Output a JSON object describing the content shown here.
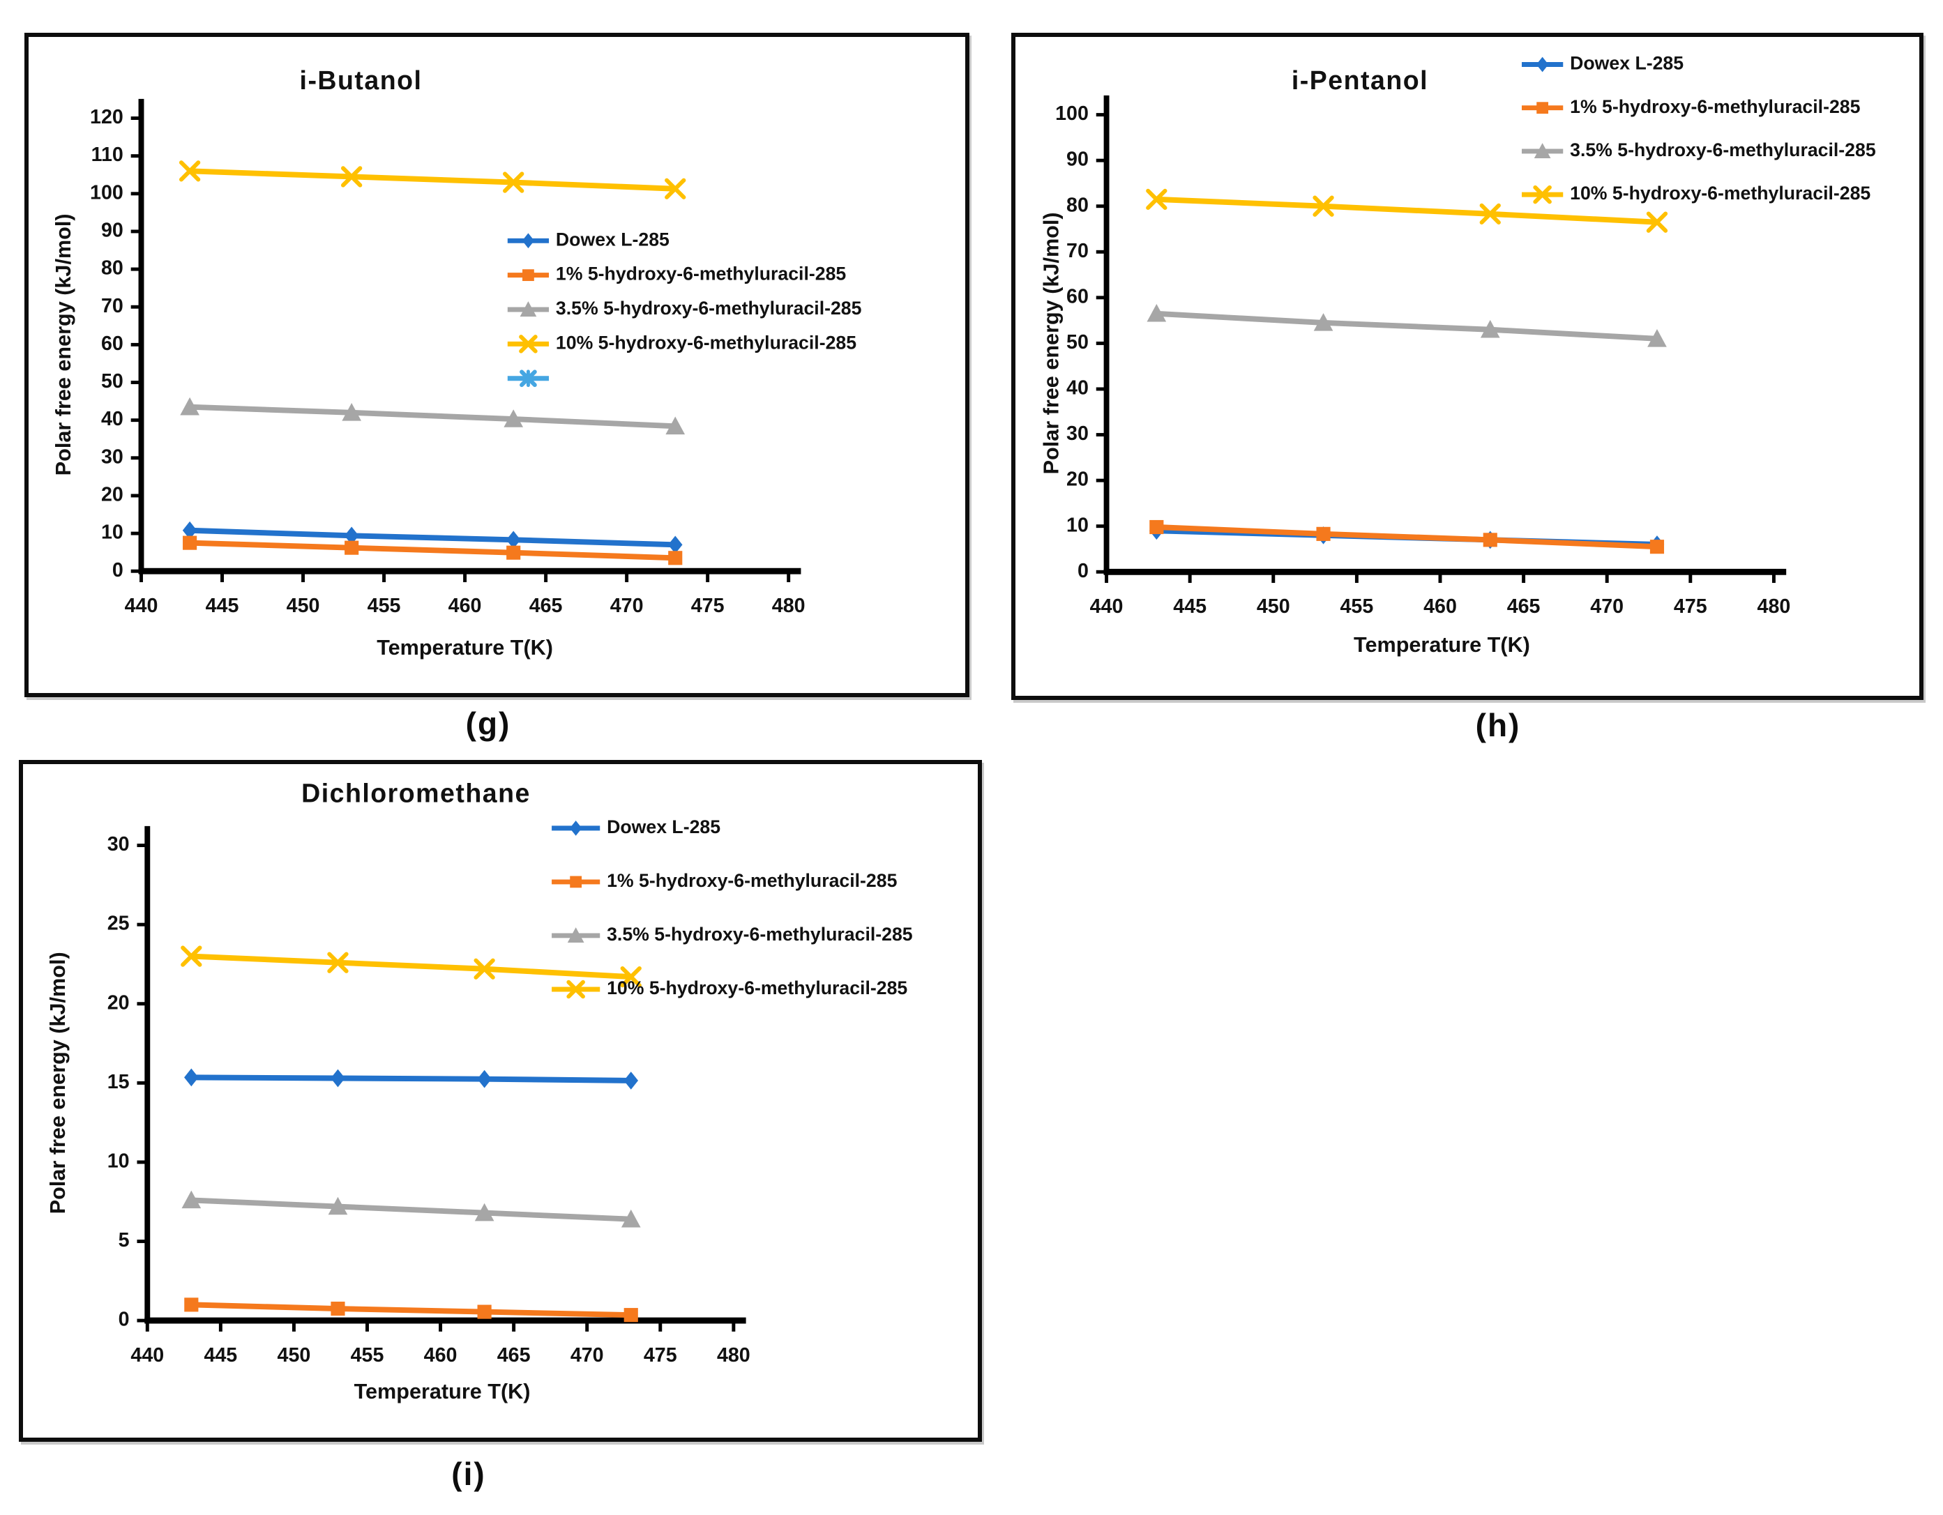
{
  "page": {
    "background": "#ffffff"
  },
  "colors": {
    "blue": "#2272CC",
    "orange": "#F5791D",
    "gray": "#A6A6A6",
    "yellow": "#FFC000",
    "lightblue": "#45A6E2",
    "axis": "#000000",
    "text": "#111111"
  },
  "captions": {
    "g": "(g)",
    "h": "(h)",
    "i": "(i)"
  },
  "chart_data": [
    {
      "key": "g",
      "type": "line",
      "title": "i-Butanol",
      "xlabel": "Temperature T(K)",
      "ylabel": "Polar free energy (kJ/mol)",
      "xlim": [
        440,
        480
      ],
      "ylim": [
        0,
        120
      ],
      "xticks": [
        440,
        445,
        450,
        455,
        460,
        465,
        470,
        475,
        480
      ],
      "yticks": [
        0,
        10,
        20,
        30,
        40,
        50,
        60,
        70,
        80,
        90,
        100,
        110,
        120
      ],
      "x": [
        443,
        453,
        463,
        473
      ],
      "legend_position": "inside-center-right",
      "grid": false,
      "series": [
        {
          "name": "Dowex L-285",
          "color": "blue",
          "marker": "diamond",
          "values": [
            10.8,
            9.4,
            8.3,
            7.0
          ]
        },
        {
          "name": "1% 5-hydroxy-6-methyluracil-285",
          "color": "orange",
          "marker": "square",
          "values": [
            7.5,
            6.2,
            4.9,
            3.5
          ]
        },
        {
          "name": "3.5% 5-hydroxy-6-methyluracil-285",
          "color": "gray",
          "marker": "triangle",
          "values": [
            43.5,
            42.0,
            40.3,
            38.4
          ]
        },
        {
          "name": "10% 5-hydroxy-6-methyluracil-285",
          "color": "yellow",
          "marker": "xmark",
          "values": [
            106.0,
            104.5,
            103.0,
            101.3
          ]
        },
        {
          "name": "",
          "color": "lightblue",
          "marker": "asterisk",
          "values": []
        }
      ]
    },
    {
      "key": "h",
      "type": "line",
      "title": "i-Pentanol",
      "xlabel": "Temperature T(K)",
      "ylabel": "Polar free energy (kJ/mol)",
      "xlim": [
        440,
        480
      ],
      "ylim": [
        0,
        100
      ],
      "xticks": [
        440,
        445,
        450,
        455,
        460,
        465,
        470,
        475,
        480
      ],
      "yticks": [
        0,
        10,
        20,
        30,
        40,
        50,
        60,
        70,
        80,
        90,
        100
      ],
      "x": [
        443,
        453,
        463,
        473
      ],
      "legend_position": "inside-top-right",
      "grid": false,
      "series": [
        {
          "name": "Dowex L-285",
          "color": "blue",
          "marker": "diamond",
          "values": [
            9.0,
            8.0,
            7.0,
            6.0
          ]
        },
        {
          "name": "1% 5-hydroxy-6-methyluracil-285",
          "color": "orange",
          "marker": "square",
          "values": [
            9.8,
            8.3,
            7.0,
            5.5
          ]
        },
        {
          "name": "3.5% 5-hydroxy-6-methyluracil-285",
          "color": "gray",
          "marker": "triangle",
          "values": [
            56.5,
            54.5,
            53.0,
            51.0
          ]
        },
        {
          "name": "10% 5-hydroxy-6-methyluracil-285",
          "color": "yellow",
          "marker": "xmark",
          "values": [
            81.5,
            80.0,
            78.3,
            76.5
          ]
        }
      ]
    },
    {
      "key": "i",
      "type": "line",
      "title": "Dichloromethane",
      "xlabel": "Temperature T(K)",
      "ylabel": "Polar free energy (kJ/mol)",
      "xlim": [
        440,
        480
      ],
      "ylim": [
        0,
        30
      ],
      "xticks": [
        440,
        445,
        450,
        455,
        460,
        465,
        470,
        475,
        480
      ],
      "yticks": [
        0,
        5,
        10,
        15,
        20,
        25,
        30
      ],
      "x": [
        443,
        453,
        463,
        473
      ],
      "legend_position": "inside-top-right",
      "grid": false,
      "series": [
        {
          "name": "Dowex L-285",
          "color": "blue",
          "marker": "diamond",
          "values": [
            15.35,
            15.3,
            15.25,
            15.15
          ]
        },
        {
          "name": "1% 5-hydroxy-6-methyluracil-285",
          "color": "orange",
          "marker": "square",
          "values": [
            1.0,
            0.75,
            0.55,
            0.35
          ]
        },
        {
          "name": "3.5% 5-hydroxy-6-methyluracil-285",
          "color": "gray",
          "marker": "triangle",
          "values": [
            7.6,
            7.2,
            6.8,
            6.4
          ]
        },
        {
          "name": "10% 5-hydroxy-6-methyluracil-285",
          "color": "yellow",
          "marker": "xmark",
          "values": [
            23.0,
            22.6,
            22.2,
            21.7
          ]
        }
      ]
    }
  ]
}
